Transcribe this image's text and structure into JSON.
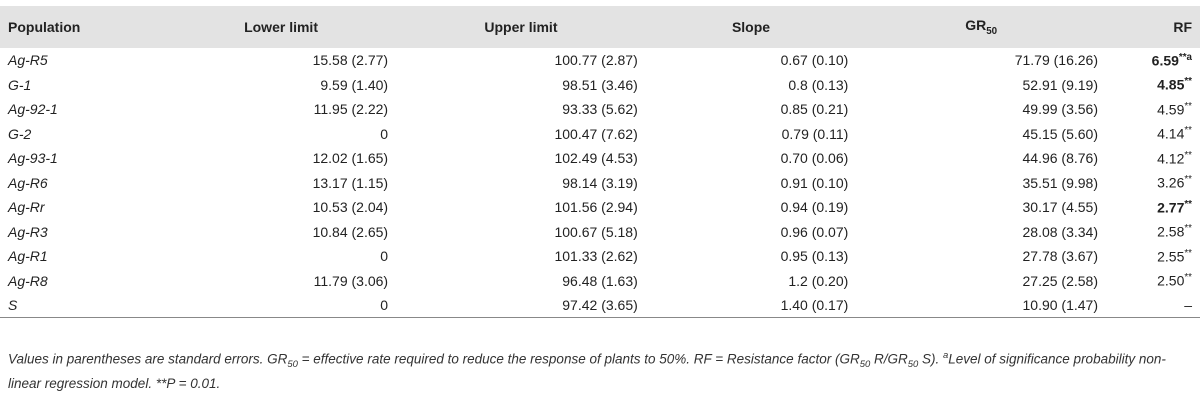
{
  "table": {
    "headers": {
      "population": "Population",
      "lower": "Lower limit",
      "upper": "Upper limit",
      "slope": "Slope",
      "gr_base": "GR",
      "gr_sub": "50",
      "rf": "RF"
    },
    "rows": [
      {
        "pop": "Ag-R5",
        "lower": "15.58 (2.77)",
        "upper": "100.77 (2.87)",
        "slope": "0.67 (0.10)",
        "gr50": "71.79 (16.26)",
        "rf": "6.59",
        "rf_mark": "**a",
        "rf_bold": true
      },
      {
        "pop": "G-1",
        "lower": "9.59 (1.40)",
        "upper": "98.51 (3.46)",
        "slope": "0.8 (0.13)",
        "gr50": "52.91 (9.19)",
        "rf": "4.85",
        "rf_mark": "**",
        "rf_bold": true
      },
      {
        "pop": "Ag-92-1",
        "lower": "11.95 (2.22)",
        "upper": "93.33 (5.62)",
        "slope": "0.85 (0.21)",
        "gr50": "49.99 (3.56)",
        "rf": "4.59",
        "rf_mark": "**",
        "rf_bold": false
      },
      {
        "pop": "G-2",
        "lower": "0",
        "upper": "100.47 (7.62)",
        "slope": "0.79 (0.11)",
        "gr50": "45.15 (5.60)",
        "rf": "4.14",
        "rf_mark": "**",
        "rf_bold": false
      },
      {
        "pop": "Ag-93-1",
        "lower": "12.02 (1.65)",
        "upper": "102.49 (4.53)",
        "slope": "0.70 (0.06)",
        "gr50": "44.96 (8.76)",
        "rf": "4.12",
        "rf_mark": "**",
        "rf_bold": false
      },
      {
        "pop": "Ag-R6",
        "lower": "13.17 (1.15)",
        "upper": "98.14 (3.19)",
        "slope": "0.91 (0.10)",
        "gr50": "35.51 (9.98)",
        "rf": "3.26",
        "rf_mark": "**",
        "rf_bold": false
      },
      {
        "pop": "Ag-Rr",
        "lower": "10.53 (2.04)",
        "upper": "101.56 (2.94)",
        "slope": "0.94 (0.19)",
        "gr50": "30.17 (4.55)",
        "rf": "2.77",
        "rf_mark": "**",
        "rf_bold": true
      },
      {
        "pop": "Ag-R3",
        "lower": "10.84 (2.65)",
        "upper": "100.67 (5.18)",
        "slope": "0.96 (0.07)",
        "gr50": "28.08 (3.34)",
        "rf": "2.58",
        "rf_mark": "**",
        "rf_bold": false
      },
      {
        "pop": "Ag-R1",
        "lower": "0",
        "upper": "101.33 (2.62)",
        "slope": "0.95 (0.13)",
        "gr50": "27.78 (3.67)",
        "rf": "2.55",
        "rf_mark": "**",
        "rf_bold": false
      },
      {
        "pop": "Ag-R8",
        "lower": "11.79 (3.06)",
        "upper": "96.48 (1.63)",
        "slope": "1.2 (0.20)",
        "gr50": "27.25 (2.58)",
        "rf": "2.50",
        "rf_mark": "**",
        "rf_bold": false
      },
      {
        "pop": "S",
        "lower": "0",
        "upper": "97.42 (3.65)",
        "slope": "1.40 (0.17)",
        "gr50": "10.90 (1.47)",
        "rf": "–",
        "rf_mark": "",
        "rf_bold": false
      }
    ]
  },
  "footnote": {
    "p1": "Values in parentheses are standard errors. GR",
    "s1": "50",
    "p2": " = effective rate required to reduce the response of plants to 50%. RF = Resistance factor (GR",
    "s2": "50",
    "p3": " R/GR",
    "s3": "50",
    "p4": " S). ",
    "sup_a": "a",
    "p5": "Level of significance probability non-linear regression model. **P = 0.01."
  }
}
